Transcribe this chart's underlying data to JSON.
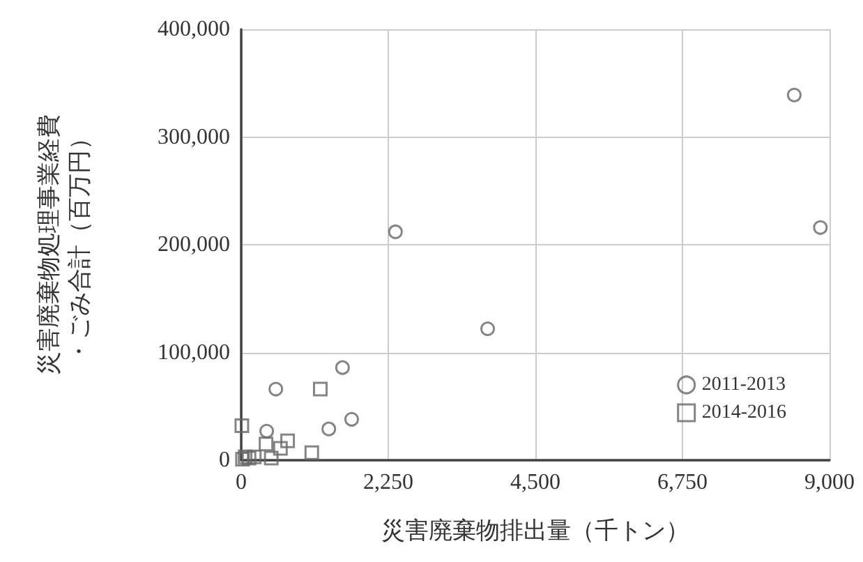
{
  "chart_data": {
    "type": "scatter",
    "xlabel": "災害廃棄物排出量（千トン）",
    "ylabel": "災害廃棄物処理事業経費・ごみ合計（百万円）",
    "xlim": [
      0,
      9000
    ],
    "xticks": [
      0,
      {
        "value": 2250,
        "label": "2,250"
      },
      {
        "value": 4500,
        "label": "4,500"
      },
      {
        "value": 6750,
        "label": "6,750"
      },
      {
        "value": 9000,
        "label": "9,000"
      }
    ],
    "ylim": [
      0,
      400000
    ],
    "yticks": [
      0,
      {
        "value": 100000,
        "label": "100,000"
      },
      {
        "value": 200000,
        "label": "200,000"
      },
      {
        "value": 300000,
        "label": "300,000"
      },
      {
        "value": 400000,
        "label": "400,000"
      }
    ],
    "grid": true,
    "legend": "bottom right",
    "series": [
      {
        "name": "2011-2013",
        "color": "#666666",
        "marker": "circle",
        "x": [
          8460,
          8860,
          2360,
          3770,
          1550,
          530,
          1690,
          1340,
          390
        ],
        "values": [
          339000,
          216000,
          212000,
          122000,
          86000,
          66000,
          38000,
          29000,
          27000
        ]
      },
      {
        "name": "2014-2016",
        "color": "#666666",
        "marker": "square",
        "x": [
          1210,
          10,
          710,
          600,
          380,
          1080,
          460,
          20,
          60,
          120,
          200
        ],
        "values": [
          66000,
          32000,
          18000,
          11000,
          15000,
          7000,
          2000,
          1000,
          3000,
          2000,
          3000
        ]
      }
    ]
  }
}
